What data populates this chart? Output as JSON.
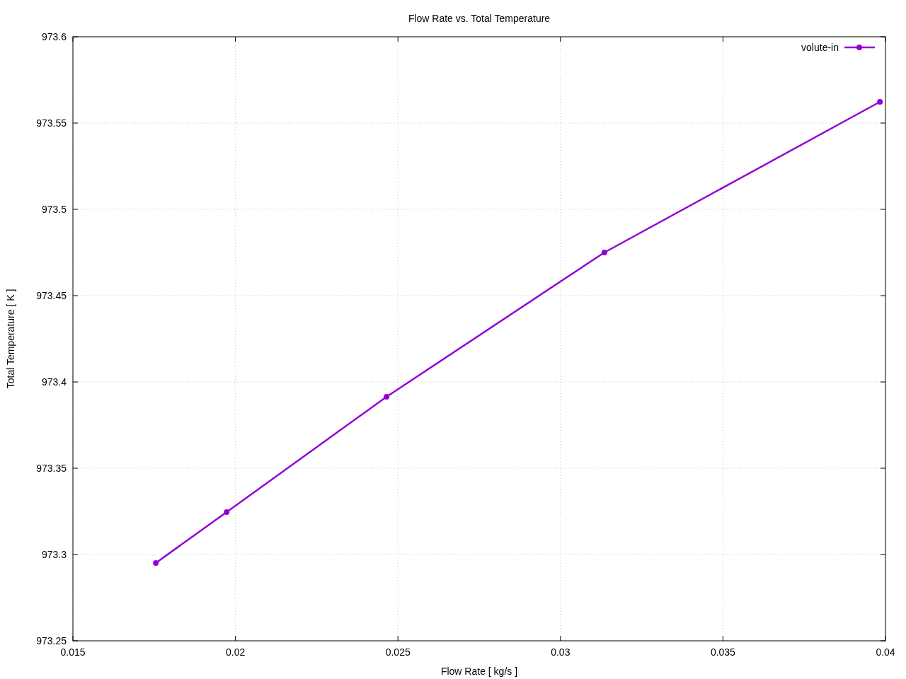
{
  "chart_data": {
    "type": "line",
    "title": "Flow Rate vs. Total Temperature",
    "xlabel": "Flow Rate [ kg/s ]",
    "ylabel": "Total Temperature [ K ]",
    "x": [
      0.01755,
      0.01973,
      0.02465,
      0.03135,
      0.03983
    ],
    "series": [
      {
        "name": "volute-in",
        "color": "#9400d3",
        "values": [
          973.2951,
          973.3246,
          973.3914,
          973.475,
          973.5623
        ]
      }
    ],
    "xlim": [
      0.015,
      0.04
    ],
    "xticks": [
      0.015,
      0.02,
      0.025,
      0.03,
      0.035,
      0.04
    ],
    "ylim": [
      973.25,
      973.6
    ],
    "yticks": [
      973.25,
      973.3,
      973.35,
      973.4,
      973.45,
      973.5,
      973.55,
      973.6
    ],
    "grid": true,
    "legend": "top right",
    "marker": "circle",
    "line_style": "solid"
  }
}
